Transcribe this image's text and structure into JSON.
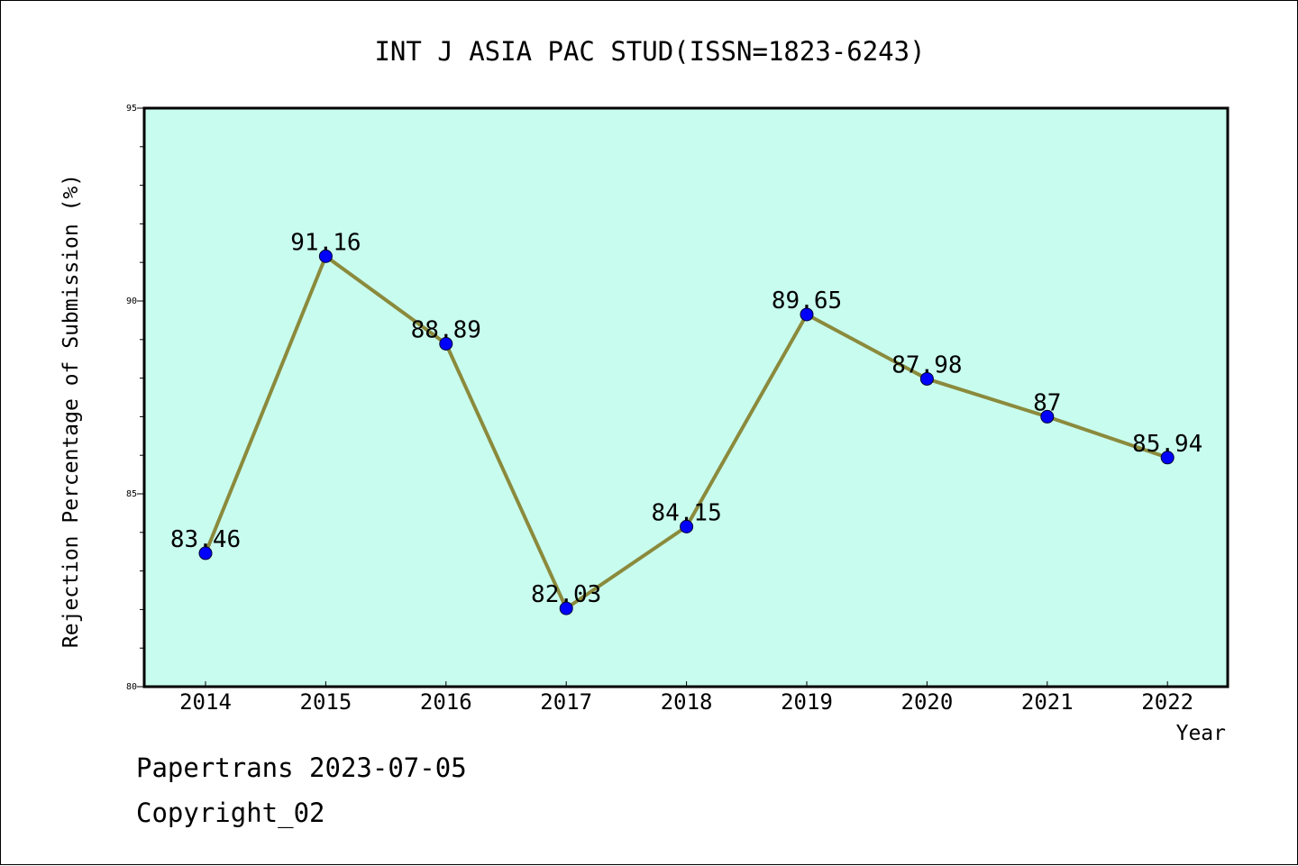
{
  "chart_data": {
    "type": "line",
    "title": "INT J ASIA PAC STUD(ISSN=1823-6243)",
    "xlabel": "Year",
    "ylabel": "Rejection Percentage of Submission (%)",
    "categories": [
      "2014",
      "2015",
      "2016",
      "2017",
      "2018",
      "2019",
      "2020",
      "2021",
      "2022"
    ],
    "series": [
      {
        "values": [
          83.46,
          91.16,
          88.89,
          82.03,
          84.15,
          89.65,
          87.98,
          87,
          85.94
        ],
        "labels": [
          "83.46",
          "91.16",
          "88.89",
          "82.03",
          "84.15",
          "89.65",
          "87.98",
          "87",
          "85.94"
        ]
      }
    ],
    "ylim": [
      80,
      95
    ],
    "yticks": [
      "80",
      "85",
      "90",
      "95"
    ],
    "grid": false,
    "colors": {
      "plot_background": "#c8fcee",
      "line": "#8b8a3c",
      "marker": "#0000ff"
    }
  },
  "footer": {
    "line1": "Papertrans 2023-07-05",
    "line2": "Copyright_02"
  }
}
